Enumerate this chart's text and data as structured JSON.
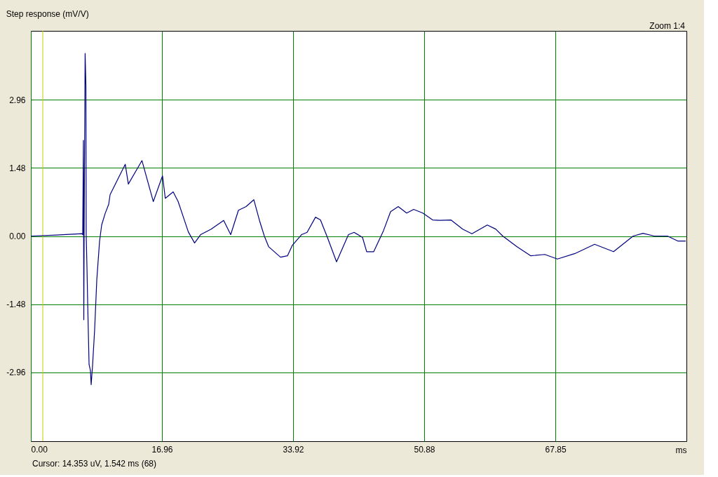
{
  "chart_data": {
    "type": "line",
    "title": "Step response (mV/V)",
    "xlabel": "ms",
    "annotations": [
      "Zoom 1:4",
      "Cursor:  14.353 uV,   1.542 ms  (68)"
    ],
    "x": [
      0,
      3.26,
      6.62,
      6.71,
      6.8,
      6.85,
      6.89,
      7.02,
      7.12,
      7.16,
      7.26,
      7.35,
      7.53,
      7.71,
      7.8,
      7.98,
      8.25,
      8.53,
      8.89,
      9.16,
      9.61,
      10.07,
      10.25,
      12.21,
      12.61,
      14.37,
      15.84,
      17.03,
      17.39,
      18.41,
      19.05,
      20.37,
      21.18,
      21.95,
      23.31,
      24.94,
      25.85,
      26.85,
      27.84,
      28.84,
      29.57,
      30.2,
      30.75,
      32.29,
      33.19,
      33.83,
      35.01,
      35.73,
      36.82,
      37.46,
      38.36,
      39.54,
      41.08,
      41.81,
      42.9,
      43.44,
      44.35,
      45.62,
      46.53,
      47.52,
      48.61,
      49.52,
      50.7,
      51.97,
      52.88,
      54.33,
      55.87,
      57.05,
      59.04,
      60.13,
      61.04,
      62.85,
      64.67,
      66.48,
      68.11,
      70.38,
      72.92,
      75.37,
      77.91,
      79.18,
      80.63,
      82.35,
      83.71,
      84.71
    ],
    "series": [
      {
        "color": "#000080",
        "values": [
          0,
          0.02,
          0.05,
          0.03,
          2.08,
          -1.82,
          0.02,
          3.97,
          3.28,
          0.02,
          -0.69,
          -1.45,
          -2.79,
          -2.93,
          -3.23,
          -2.82,
          -2.04,
          -0.95,
          -0.11,
          0.24,
          0.49,
          0.69,
          0.9,
          1.56,
          1.13,
          1.64,
          0.75,
          1.31,
          0.82,
          0.96,
          0.75,
          0.09,
          -0.15,
          0.03,
          0.15,
          0.34,
          0.03,
          0.56,
          0.64,
          0.79,
          0.34,
          0,
          -0.23,
          -0.46,
          -0.43,
          -0.2,
          0.03,
          0.08,
          0.41,
          0.35,
          -0.03,
          -0.56,
          0.03,
          0.08,
          -0.03,
          -0.34,
          -0.34,
          0.12,
          0.53,
          0.64,
          0.5,
          0.58,
          0.5,
          0.35,
          0.34,
          0.35,
          0.15,
          0.05,
          0.24,
          0.15,
          0,
          -0.23,
          -0.43,
          -0.4,
          -0.5,
          -0.38,
          -0.18,
          -0.34,
          0,
          0.06,
          0,
          0,
          -0.11,
          -0.11
        ]
      }
    ],
    "xlim": [
      0,
      84.8
    ],
    "xticks": [
      {
        "value": 0,
        "label": "0.00"
      },
      16.96,
      33.92,
      50.88,
      67.85
    ],
    "ylim": [
      -4.46,
      4.46
    ],
    "yticks": [
      -2.96,
      -1.48,
      {
        "value": 0,
        "label": "0.00"
      },
      1.48,
      2.96
    ],
    "ref_lines": [
      {
        "axis": "x",
        "value": 1.542,
        "label": null,
        "color": "#c8c800"
      }
    ],
    "grid": true
  }
}
